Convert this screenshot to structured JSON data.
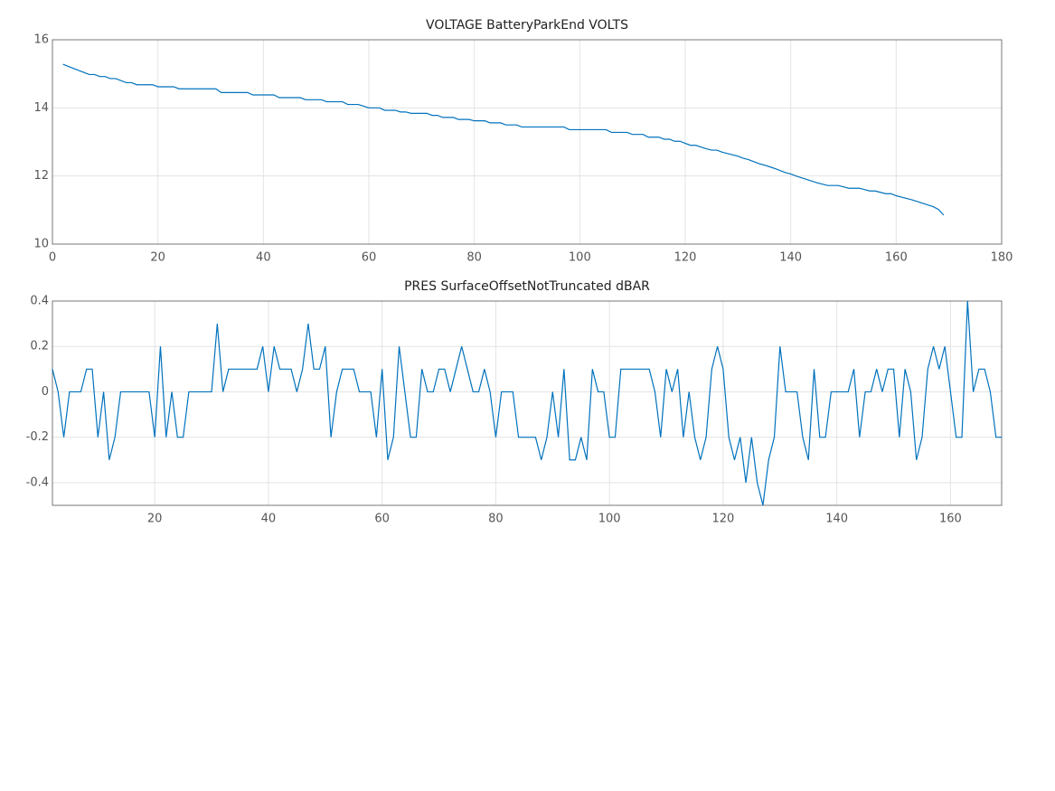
{
  "chart_data": [
    {
      "type": "line",
      "title": "VOLTAGE BatteryParkEnd VOLTS",
      "x": [
        2,
        3,
        4,
        5,
        6,
        7,
        8,
        9,
        10,
        11,
        12,
        13,
        14,
        15,
        16,
        17,
        18,
        19,
        20,
        21,
        22,
        23,
        24,
        25,
        26,
        27,
        28,
        29,
        30,
        31,
        32,
        33,
        34,
        35,
        36,
        37,
        38,
        39,
        40,
        41,
        42,
        43,
        44,
        45,
        46,
        47,
        48,
        49,
        50,
        51,
        52,
        53,
        54,
        55,
        56,
        57,
        58,
        59,
        60,
        61,
        62,
        63,
        64,
        65,
        66,
        67,
        68,
        69,
        70,
        71,
        72,
        73,
        74,
        75,
        76,
        77,
        78,
        79,
        80,
        81,
        82,
        83,
        84,
        85,
        86,
        87,
        88,
        89,
        90,
        91,
        92,
        93,
        94,
        95,
        96,
        97,
        98,
        99,
        100,
        101,
        102,
        103,
        104,
        105,
        106,
        107,
        108,
        109,
        110,
        111,
        112,
        113,
        114,
        115,
        116,
        117,
        118,
        119,
        120,
        121,
        122,
        123,
        124,
        125,
        126,
        127,
        128,
        129,
        130,
        131,
        132,
        133,
        134,
        135,
        136,
        137,
        138,
        139,
        140,
        141,
        142,
        143,
        144,
        145,
        146,
        147,
        148,
        149,
        150,
        151,
        152,
        153,
        154,
        155,
        156,
        157,
        158,
        159,
        160,
        161,
        162,
        163,
        164,
        165,
        166,
        167,
        168,
        169
      ],
      "series": [
        {
          "color": "#0072bd",
          "values": [
            15.28,
            15.22,
            15.16,
            15.1,
            15.04,
            14.98,
            14.98,
            14.92,
            14.92,
            14.86,
            14.86,
            14.8,
            14.74,
            14.74,
            14.68,
            14.68,
            14.68,
            14.68,
            14.62,
            14.62,
            14.62,
            14.62,
            14.56,
            14.56,
            14.56,
            14.56,
            14.56,
            14.56,
            14.56,
            14.56,
            14.45,
            14.45,
            14.45,
            14.45,
            14.45,
            14.45,
            14.38,
            14.38,
            14.38,
            14.38,
            14.38,
            14.3,
            14.3,
            14.3,
            14.3,
            14.3,
            14.24,
            14.24,
            14.24,
            14.24,
            14.18,
            14.18,
            14.18,
            14.18,
            14.1,
            14.1,
            14.1,
            14.05,
            14.0,
            14.0,
            14.0,
            13.93,
            13.93,
            13.93,
            13.88,
            13.88,
            13.84,
            13.84,
            13.84,
            13.84,
            13.78,
            13.78,
            13.72,
            13.72,
            13.72,
            13.66,
            13.66,
            13.66,
            13.62,
            13.62,
            13.62,
            13.56,
            13.56,
            13.56,
            13.5,
            13.5,
            13.5,
            13.44,
            13.44,
            13.44,
            13.44,
            13.44,
            13.44,
            13.44,
            13.44,
            13.44,
            13.36,
            13.36,
            13.36,
            13.36,
            13.36,
            13.36,
            13.36,
            13.36,
            13.28,
            13.28,
            13.28,
            13.28,
            13.22,
            13.22,
            13.22,
            13.14,
            13.14,
            13.14,
            13.08,
            13.08,
            13.02,
            13.02,
            12.96,
            12.9,
            12.9,
            12.85,
            12.8,
            12.76,
            12.76,
            12.7,
            12.66,
            12.62,
            12.58,
            12.52,
            12.48,
            12.42,
            12.36,
            12.32,
            12.27,
            12.22,
            12.16,
            12.1,
            12.06,
            12.0,
            11.95,
            11.9,
            11.85,
            11.8,
            11.76,
            11.72,
            11.72,
            11.72,
            11.68,
            11.64,
            11.64,
            11.64,
            11.6,
            11.56,
            11.56,
            11.52,
            11.48,
            11.48,
            11.42,
            11.38,
            11.34,
            11.3,
            11.25,
            11.2,
            11.15,
            11.1,
            11.02,
            10.85
          ]
        }
      ],
      "xlim": [
        0,
        180
      ],
      "xticks": [
        0,
        20,
        40,
        60,
        80,
        100,
        120,
        140,
        160,
        180
      ],
      "ylim": [
        10,
        16
      ],
      "yticks": [
        10,
        12,
        14,
        16
      ],
      "grid": true
    },
    {
      "type": "line",
      "title": "PRES SurfaceOffsetNotTruncated dBAR",
      "x": [
        2,
        3,
        4,
        5,
        6,
        7,
        8,
        9,
        10,
        11,
        12,
        13,
        14,
        15,
        16,
        17,
        18,
        19,
        20,
        21,
        22,
        23,
        24,
        25,
        26,
        27,
        28,
        29,
        30,
        31,
        32,
        33,
        34,
        35,
        36,
        37,
        38,
        39,
        40,
        41,
        42,
        43,
        44,
        45,
        46,
        47,
        48,
        49,
        50,
        51,
        52,
        53,
        54,
        55,
        56,
        57,
        58,
        59,
        60,
        61,
        62,
        63,
        64,
        65,
        66,
        67,
        68,
        69,
        70,
        71,
        72,
        73,
        74,
        75,
        76,
        77,
        78,
        79,
        80,
        81,
        82,
        83,
        84,
        85,
        86,
        87,
        88,
        89,
        90,
        91,
        92,
        93,
        94,
        95,
        96,
        97,
        98,
        99,
        100,
        101,
        102,
        103,
        104,
        105,
        106,
        107,
        108,
        109,
        110,
        111,
        112,
        113,
        114,
        115,
        116,
        117,
        118,
        119,
        120,
        121,
        122,
        123,
        124,
        125,
        126,
        127,
        128,
        129,
        130,
        131,
        132,
        133,
        134,
        135,
        136,
        137,
        138,
        139,
        140,
        141,
        142,
        143,
        144,
        145,
        146,
        147,
        148,
        149,
        150,
        151,
        152,
        153,
        154,
        155,
        156,
        157,
        158,
        159,
        160,
        161,
        162,
        163,
        164,
        165,
        166,
        167,
        168,
        169
      ],
      "series": [
        {
          "color": "#0072bd",
          "values": [
            0.1,
            0,
            -0.2,
            0,
            0,
            0,
            0.1,
            0.1,
            -0.2,
            0,
            -0.3,
            -0.2,
            0,
            0,
            0,
            0,
            0,
            0,
            -0.2,
            0.2,
            -0.2,
            0,
            -0.2,
            -0.2,
            0,
            0,
            0,
            0,
            0,
            0.3,
            0,
            0.1,
            0.1,
            0.1,
            0.1,
            0.1,
            0.1,
            0.2,
            0,
            0.2,
            0.1,
            0.1,
            0.1,
            0,
            0.1,
            0.3,
            0.1,
            0.1,
            0.2,
            -0.2,
            0,
            0.1,
            0.1,
            0.1,
            0,
            0,
            0,
            -0.2,
            0.1,
            -0.3,
            -0.2,
            0.2,
            0,
            -0.2,
            -0.2,
            0.1,
            0,
            0,
            0.1,
            0.1,
            0,
            0.1,
            0.2,
            0.1,
            0,
            0,
            0.1,
            0,
            -0.2,
            0,
            0,
            0,
            -0.2,
            -0.2,
            -0.2,
            -0.2,
            -0.3,
            -0.2,
            0,
            -0.2,
            0.1,
            -0.3,
            -0.3,
            -0.2,
            -0.3,
            0.1,
            0,
            0,
            -0.2,
            -0.2,
            0.1,
            0.1,
            0.1,
            0.1,
            0.1,
            0.1,
            0,
            -0.2,
            0.1,
            0,
            0.1,
            -0.2,
            0,
            -0.2,
            -0.3,
            -0.2,
            0.1,
            0.2,
            0.1,
            -0.2,
            -0.3,
            -0.2,
            -0.4,
            -0.2,
            -0.4,
            -0.5,
            -0.3,
            -0.2,
            0.2,
            0,
            0,
            0,
            -0.2,
            -0.3,
            0.1,
            -0.2,
            -0.2,
            0,
            0,
            0,
            0,
            0.1,
            -0.2,
            0,
            0,
            0.1,
            0,
            0.1,
            0.1,
            -0.2,
            0.1,
            0,
            -0.3,
            -0.2,
            0.1,
            0.2,
            0.1,
            0.2,
            0,
            -0.2,
            -0.2,
            0.4,
            0,
            0.1,
            0.1,
            0,
            -0.2,
            -0.2
          ]
        }
      ],
      "xlim": [
        2,
        169
      ],
      "xticks": [
        20,
        40,
        60,
        80,
        100,
        120,
        140,
        160
      ],
      "ylim": [
        -0.5,
        0.4
      ],
      "yticks": [
        -0.4,
        -0.2,
        0,
        0.2,
        0.4
      ],
      "grid": true
    }
  ]
}
